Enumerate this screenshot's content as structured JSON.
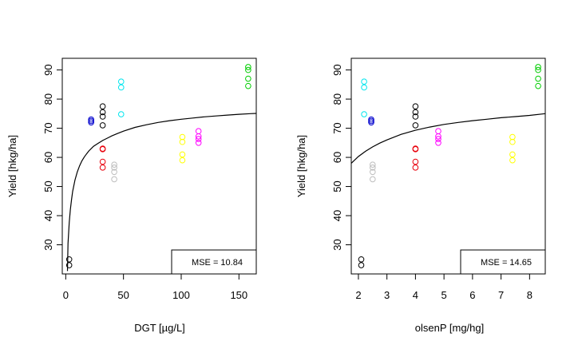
{
  "chart_data": [
    {
      "type": "scatter",
      "xlabel": "DGT [µg/L]",
      "ylabel": "Yield [hkg/ha]",
      "xlim": [
        -3,
        165
      ],
      "ylim": [
        20,
        94
      ],
      "xticks": [
        0,
        50,
        100,
        150
      ],
      "yticks": [
        30,
        40,
        50,
        60,
        70,
        80,
        90
      ],
      "annotation": "MSE = 10.84",
      "annotation_position": "bottom-right",
      "grid": false,
      "curve": {
        "name": "fit",
        "color": "#000000",
        "x": [
          1.5,
          2,
          3,
          4,
          5,
          6,
          8,
          10,
          12,
          14,
          16,
          18,
          20,
          24,
          28,
          32,
          36,
          40,
          45,
          50,
          60,
          70,
          80,
          90,
          100,
          110,
          120,
          130,
          140,
          150,
          160,
          165
        ],
        "y": [
          21,
          30.5,
          37.5,
          42,
          45.5,
          48.3,
          52.2,
          55,
          57.1,
          58.8,
          60.1,
          61.2,
          62.2,
          63.8,
          64.8,
          65.8,
          66.6,
          67.4,
          68.2,
          69,
          70.3,
          71.2,
          72,
          72.6,
          73.1,
          73.5,
          73.9,
          74.2,
          74.5,
          74.8,
          75,
          75.1
        ]
      },
      "points": [
        {
          "x": 3,
          "y": 25,
          "color": "#000000"
        },
        {
          "x": 3,
          "y": 23,
          "color": "#000000"
        },
        {
          "x": 22,
          "y": 73,
          "color": "#0000CD"
        },
        {
          "x": 22,
          "y": 72,
          "color": "#0000CD"
        },
        {
          "x": 22,
          "y": 72.5,
          "color": "#0000CD"
        },
        {
          "x": 32,
          "y": 77.5,
          "color": "#000000"
        },
        {
          "x": 32,
          "y": 75.5,
          "color": "#000000"
        },
        {
          "x": 32,
          "y": 74,
          "color": "#000000"
        },
        {
          "x": 32,
          "y": 71,
          "color": "#000000"
        },
        {
          "x": 32,
          "y": 63,
          "color": "#E8000B"
        },
        {
          "x": 32,
          "y": 62.8,
          "color": "#E8000B"
        },
        {
          "x": 32,
          "y": 58.5,
          "color": "#E8000B"
        },
        {
          "x": 32,
          "y": 56.5,
          "color": "#E8000B"
        },
        {
          "x": 42,
          "y": 57.5,
          "color": "#BEBEBE"
        },
        {
          "x": 42,
          "y": 56.5,
          "color": "#BEBEBE"
        },
        {
          "x": 42,
          "y": 55,
          "color": "#BEBEBE"
        },
        {
          "x": 42,
          "y": 52.5,
          "color": "#BEBEBE"
        },
        {
          "x": 48,
          "y": 86,
          "color": "#00E5EE"
        },
        {
          "x": 48,
          "y": 84,
          "color": "#00E5EE"
        },
        {
          "x": 48,
          "y": 74.8,
          "color": "#00E5EE"
        },
        {
          "x": 101,
          "y": 67,
          "color": "#FFFF00"
        },
        {
          "x": 101,
          "y": 65.3,
          "color": "#FFFF00"
        },
        {
          "x": 101,
          "y": 61,
          "color": "#FFFF00"
        },
        {
          "x": 101,
          "y": 59,
          "color": "#FFFF00"
        },
        {
          "x": 115,
          "y": 69,
          "color": "#FF00FF"
        },
        {
          "x": 115,
          "y": 67.2,
          "color": "#FF00FF"
        },
        {
          "x": 115,
          "y": 66.3,
          "color": "#FF00FF"
        },
        {
          "x": 115,
          "y": 65,
          "color": "#FF00FF"
        },
        {
          "x": 158,
          "y": 91,
          "color": "#00CD00"
        },
        {
          "x": 158,
          "y": 90,
          "color": "#00CD00"
        },
        {
          "x": 158,
          "y": 87,
          "color": "#00CD00"
        },
        {
          "x": 158,
          "y": 84.5,
          "color": "#00CD00"
        }
      ]
    },
    {
      "type": "scatter",
      "xlabel": "olsenP [mg/hg]",
      "ylabel": "Yield [hkg/ha]",
      "xlim": [
        1.75,
        8.55
      ],
      "ylim": [
        20,
        94
      ],
      "xticks": [
        2,
        3,
        4,
        5,
        6,
        7,
        8
      ],
      "yticks": [
        30,
        40,
        50,
        60,
        70,
        80,
        90
      ],
      "annotation": "MSE = 14.65",
      "annotation_position": "bottom-right",
      "grid": false,
      "curve": {
        "name": "fit",
        "color": "#000000",
        "x": [
          1.75,
          2,
          2.25,
          2.5,
          2.75,
          3,
          3.5,
          4,
          4.5,
          5,
          5.5,
          6,
          6.5,
          7,
          7.5,
          8,
          8.55
        ],
        "y": [
          58,
          60.3,
          62.1,
          63.6,
          64.9,
          66,
          67.9,
          69.3,
          70.4,
          71.3,
          72,
          72.6,
          73.1,
          73.6,
          74,
          74.4,
          75
        ]
      },
      "points": [
        {
          "x": 2.1,
          "y": 25,
          "color": "#000000"
        },
        {
          "x": 2.1,
          "y": 23,
          "color": "#000000"
        },
        {
          "x": 2.2,
          "y": 86,
          "color": "#00E5EE"
        },
        {
          "x": 2.2,
          "y": 84,
          "color": "#00E5EE"
        },
        {
          "x": 2.2,
          "y": 74.8,
          "color": "#00E5EE"
        },
        {
          "x": 2.45,
          "y": 73,
          "color": "#0000CD"
        },
        {
          "x": 2.45,
          "y": 72,
          "color": "#0000CD"
        },
        {
          "x": 2.45,
          "y": 72.5,
          "color": "#0000CD"
        },
        {
          "x": 2.5,
          "y": 57.5,
          "color": "#BEBEBE"
        },
        {
          "x": 2.5,
          "y": 56.5,
          "color": "#BEBEBE"
        },
        {
          "x": 2.5,
          "y": 55,
          "color": "#BEBEBE"
        },
        {
          "x": 2.5,
          "y": 52.5,
          "color": "#BEBEBE"
        },
        {
          "x": 4,
          "y": 77.5,
          "color": "#000000"
        },
        {
          "x": 4,
          "y": 75.5,
          "color": "#000000"
        },
        {
          "x": 4,
          "y": 74,
          "color": "#000000"
        },
        {
          "x": 4,
          "y": 71,
          "color": "#000000"
        },
        {
          "x": 4,
          "y": 63,
          "color": "#E8000B"
        },
        {
          "x": 4,
          "y": 62.8,
          "color": "#E8000B"
        },
        {
          "x": 4,
          "y": 58.5,
          "color": "#E8000B"
        },
        {
          "x": 4,
          "y": 56.5,
          "color": "#E8000B"
        },
        {
          "x": 4.8,
          "y": 69,
          "color": "#FF00FF"
        },
        {
          "x": 4.8,
          "y": 67.2,
          "color": "#FF00FF"
        },
        {
          "x": 4.8,
          "y": 66.3,
          "color": "#FF00FF"
        },
        {
          "x": 4.8,
          "y": 65,
          "color": "#FF00FF"
        },
        {
          "x": 7.4,
          "y": 67,
          "color": "#FFFF00"
        },
        {
          "x": 7.4,
          "y": 65.3,
          "color": "#FFFF00"
        },
        {
          "x": 7.4,
          "y": 61,
          "color": "#FFFF00"
        },
        {
          "x": 7.4,
          "y": 59,
          "color": "#FFFF00"
        },
        {
          "x": 8.3,
          "y": 91,
          "color": "#00CD00"
        },
        {
          "x": 8.3,
          "y": 90,
          "color": "#00CD00"
        },
        {
          "x": 8.3,
          "y": 87,
          "color": "#00CD00"
        },
        {
          "x": 8.3,
          "y": 84.5,
          "color": "#00CD00"
        }
      ]
    }
  ]
}
